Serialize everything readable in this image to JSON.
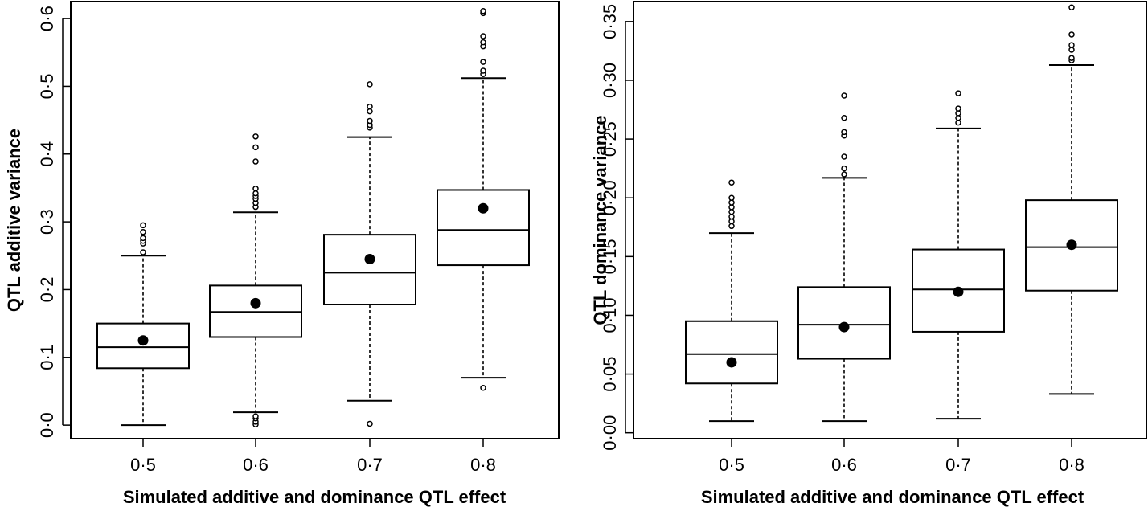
{
  "chart_data": [
    {
      "type": "boxplot",
      "xlabel": "Simulated additive and dominance QTL effect",
      "ylabel": "QTL additive variance",
      "categories": [
        "0·5",
        "0·6",
        "0·7",
        "0·8"
      ],
      "ylim": [
        -0.02,
        0.625
      ],
      "yticks": [
        {
          "value": 0.0,
          "label": "0·0"
        },
        {
          "value": 0.1,
          "label": "0·1"
        },
        {
          "value": 0.2,
          "label": "0·2"
        },
        {
          "value": 0.3,
          "label": "0·3"
        },
        {
          "value": 0.4,
          "label": "0·4"
        },
        {
          "value": 0.5,
          "label": "0·5"
        },
        {
          "value": 0.6,
          "label": "0·6"
        }
      ],
      "boxes": [
        {
          "category": "0·5",
          "whisker_low": 0.0,
          "q1": 0.084,
          "median": 0.115,
          "q3": 0.15,
          "whisker_high": 0.25,
          "mean": 0.125,
          "outliers": [
            0.255,
            0.268,
            0.272,
            0.276,
            0.285,
            0.295
          ]
        },
        {
          "category": "0·6",
          "whisker_low": 0.019,
          "q1": 0.13,
          "median": 0.167,
          "q3": 0.206,
          "whisker_high": 0.314,
          "mean": 0.18,
          "outliers": [
            0.001,
            0.005,
            0.01,
            0.013,
            0.322,
            0.328,
            0.334,
            0.338,
            0.342,
            0.349,
            0.389,
            0.41,
            0.426
          ]
        },
        {
          "category": "0·7",
          "whisker_low": 0.036,
          "q1": 0.178,
          "median": 0.225,
          "q3": 0.281,
          "whisker_high": 0.425,
          "mean": 0.245,
          "outliers": [
            0.002,
            0.439,
            0.443,
            0.449,
            0.463,
            0.47,
            0.503
          ]
        },
        {
          "category": "0·8",
          "whisker_low": 0.07,
          "q1": 0.236,
          "median": 0.288,
          "q3": 0.347,
          "whisker_high": 0.512,
          "mean": 0.32,
          "outliers": [
            0.055,
            0.518,
            0.523,
            0.536,
            0.559,
            0.565,
            0.574,
            0.608,
            0.611
          ]
        }
      ]
    },
    {
      "type": "boxplot",
      "xlabel": "Simulated additive and dominance QTL effect",
      "ylabel": "QTL dominance variance",
      "categories": [
        "0·5",
        "0·6",
        "0·7",
        "0·8"
      ],
      "ylim": [
        -0.005,
        0.367
      ],
      "yticks": [
        {
          "value": 0.0,
          "label": "0·00"
        },
        {
          "value": 0.05,
          "label": "0·05"
        },
        {
          "value": 0.1,
          "label": "0·10"
        },
        {
          "value": 0.15,
          "label": "0·15"
        },
        {
          "value": 0.2,
          "label": "0·20"
        },
        {
          "value": 0.25,
          "label": "0·25"
        },
        {
          "value": 0.3,
          "label": "0·30"
        },
        {
          "value": 0.35,
          "label": "0·35"
        }
      ],
      "boxes": [
        {
          "category": "0·5",
          "whisker_low": 0.01,
          "q1": 0.042,
          "median": 0.067,
          "q3": 0.095,
          "whisker_high": 0.17,
          "mean": 0.06,
          "outliers": [
            0.176,
            0.18,
            0.184,
            0.188,
            0.192,
            0.196,
            0.2,
            0.213
          ]
        },
        {
          "category": "0·6",
          "whisker_low": 0.01,
          "q1": 0.063,
          "median": 0.092,
          "q3": 0.124,
          "whisker_high": 0.217,
          "mean": 0.09,
          "outliers": [
            0.22,
            0.225,
            0.235,
            0.253,
            0.256,
            0.268,
            0.287
          ]
        },
        {
          "category": "0·7",
          "whisker_low": 0.012,
          "q1": 0.086,
          "median": 0.122,
          "q3": 0.156,
          "whisker_high": 0.259,
          "mean": 0.12,
          "outliers": [
            0.264,
            0.268,
            0.272,
            0.276,
            0.289
          ]
        },
        {
          "category": "0·8",
          "whisker_low": 0.033,
          "q1": 0.121,
          "median": 0.158,
          "q3": 0.198,
          "whisker_high": 0.313,
          "mean": 0.16,
          "outliers": [
            0.317,
            0.319,
            0.326,
            0.33,
            0.339,
            0.362
          ]
        }
      ]
    }
  ]
}
